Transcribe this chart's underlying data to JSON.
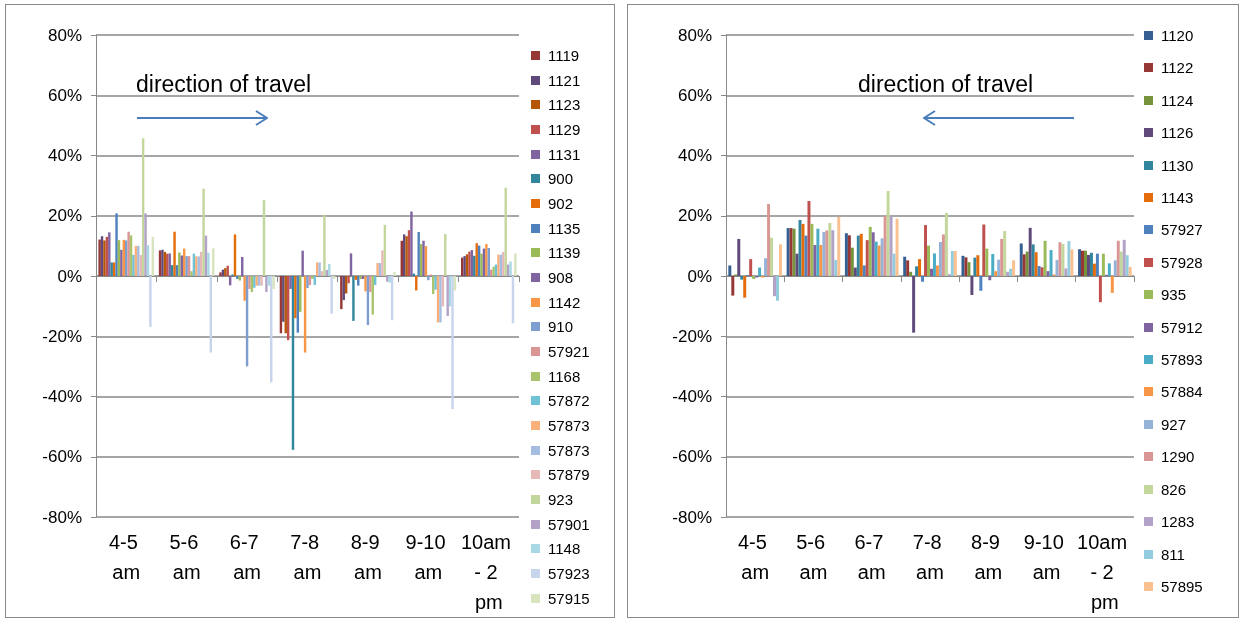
{
  "chart_data": [
    {
      "type": "bar",
      "annotations": [
        "direction of travel"
      ],
      "categories": [
        "4-5 am",
        "5-6 am",
        "6-7 am",
        "7-8 am",
        "8-9 am",
        "9-10 am",
        "10am - 2 pm"
      ],
      "ylim": [
        -80,
        80
      ],
      "yticks": [
        {
          "value": -80,
          "label": "-80%"
        },
        {
          "value": -60,
          "label": "-60%"
        },
        {
          "value": -40,
          "label": "-40%"
        },
        {
          "value": -20,
          "label": "-20%"
        },
        {
          "value": 0,
          "label": "0%"
        },
        {
          "value": 20,
          "label": "20%"
        },
        {
          "value": 40,
          "label": "40%"
        },
        {
          "value": 60,
          "label": "60%"
        },
        {
          "value": 80,
          "label": "80%"
        }
      ],
      "grid": "y",
      "legend": "right",
      "series": [
        {
          "name": "1119",
          "color": "#953735",
          "values": [
            12.1,
            8.5,
            1.2,
            -19,
            -11,
            11.7,
            6.1
          ]
        },
        {
          "name": "1121",
          "color": "#604a7b",
          "values": [
            13.2,
            8.7,
            2.1,
            -15.2,
            -8,
            13.8,
            6.6
          ]
        },
        {
          "name": "1123",
          "color": "#b65708",
          "values": [
            11.8,
            8,
            2.6,
            -19,
            -5.8,
            13.2,
            7.2
          ]
        },
        {
          "name": "1129",
          "color": "#c0504d",
          "values": [
            13,
            7.4,
            3.4,
            -21.3,
            -2.4,
            15.2,
            8.1
          ]
        },
        {
          "name": "1131",
          "color": "#8064a2",
          "values": [
            14.5,
            7.5,
            -3.1,
            -4.3,
            7.5,
            21.4,
            8.6
          ]
        },
        {
          "name": "900",
          "color": "#31859c",
          "values": [
            4.5,
            3.6,
            0.5,
            -57.7,
            -14.9,
            0.8,
            6.7
          ]
        },
        {
          "name": "902",
          "color": "#e46c0a",
          "values": [
            4.5,
            14.7,
            13.8,
            -14,
            -1.3,
            -4.8,
            10.9
          ]
        },
        {
          "name": "1135",
          "color": "#4f81bd",
          "values": [
            20.8,
            3.6,
            -1,
            -18.8,
            -3.2,
            14.6,
            10.1
          ]
        },
        {
          "name": "1139",
          "color": "#9bbb59",
          "values": [
            11.9,
            7.8,
            -1.5,
            -11.9,
            -1,
            10.6,
            7.4
          ]
        },
        {
          "name": "908",
          "color": "#8064a2",
          "values": [
            8.7,
            6.8,
            6.3,
            8.4,
            -1,
            11.7,
            9.1
          ]
        },
        {
          "name": "1142",
          "color": "#f79646",
          "values": [
            12,
            9.1,
            -8.2,
            -25.4,
            -5.1,
            9.9,
            10.6
          ]
        },
        {
          "name": "910",
          "color": "#7f9ed0",
          "values": [
            11.8,
            6.6,
            -30,
            -4,
            -16.3,
            -1.4,
            9.3
          ]
        },
        {
          "name": "57921",
          "color": "#d99694",
          "values": [
            14.7,
            6.6,
            -4.3,
            -3,
            -5.3,
            0.5,
            2.1
          ]
        },
        {
          "name": "1168",
          "color": "#a9c46c",
          "values": [
            13.5,
            1.6,
            -5.3,
            -1,
            -12.8,
            -6,
            3.1
          ]
        },
        {
          "name": "57872",
          "color": "#6fc1d6",
          "values": [
            7,
            7.4,
            -3.9,
            -3,
            -3,
            -4.5,
            3.8
          ]
        },
        {
          "name": "57873",
          "color": "#fab07a",
          "values": [
            10,
            6.5,
            -3.2,
            4.5,
            4.3,
            -15.4,
            7.1
          ]
        },
        {
          "name": "57873",
          "color": "#a5bde0",
          "values": [
            10,
            6.5,
            -3.2,
            4.5,
            4.3,
            -15.4,
            7.1
          ]
        },
        {
          "name": "57879",
          "color": "#e6b9b8",
          "values": [
            7,
            8,
            -3.2,
            1.6,
            8.5,
            -10.1,
            8
          ]
        },
        {
          "name": "923",
          "color": "#c3d69b",
          "values": [
            45.7,
            29,
            25.3,
            20.2,
            17,
            13.9,
            29.3
          ]
        },
        {
          "name": "57901",
          "color": "#b3a2c7",
          "values": [
            20.8,
            13.4,
            -5.3,
            2,
            -1.9,
            -13.3,
            3.8
          ]
        },
        {
          "name": "1148",
          "color": "#a8d8e4",
          "values": [
            10.2,
            7.7,
            -3.2,
            4,
            -2.2,
            -10.1,
            4.8
          ]
        },
        {
          "name": "57923",
          "color": "#c6d4ec",
          "values": [
            -16.9,
            -25.4,
            -35.3,
            -12.5,
            -14.7,
            -44.2,
            -15.7
          ]
        },
        {
          "name": "57915",
          "color": "#d7e4bd",
          "values": [
            13,
            9.2,
            -4.3,
            -1,
            1.4,
            -4.8,
            7.5
          ]
        }
      ]
    },
    {
      "type": "bar",
      "annotations": [
        "direction of travel"
      ],
      "categories": [
        "4-5 am",
        "5-6 am",
        "6-7 am",
        "7-8 am",
        "8-9 am",
        "9-10 am",
        "10am - 2 pm"
      ],
      "ylim": [
        -80,
        80
      ],
      "yticks": [
        {
          "value": -80,
          "label": "-80%"
        },
        {
          "value": -60,
          "label": "-60%"
        },
        {
          "value": -40,
          "label": "-40%"
        },
        {
          "value": -20,
          "label": "-20%"
        },
        {
          "value": 0,
          "label": "0%"
        },
        {
          "value": 20,
          "label": "20%"
        },
        {
          "value": 40,
          "label": "40%"
        },
        {
          "value": 60,
          "label": "60%"
        },
        {
          "value": 80,
          "label": "80%"
        }
      ],
      "grid": "y",
      "legend": "right",
      "series": [
        {
          "name": "1120",
          "color": "#376092",
          "values": [
            3.5,
            15.9,
            14.2,
            6.4,
            6.7,
            10.8,
            8.9
          ]
        },
        {
          "name": "1122",
          "color": "#953735",
          "values": [
            -6.5,
            15.9,
            13.5,
            5.2,
            6.2,
            7.2,
            8.4
          ]
        },
        {
          "name": "1124",
          "color": "#77933c",
          "values": [
            0.5,
            15.7,
            9.4,
            1.4,
            4.6,
            8.1,
            8.4
          ]
        },
        {
          "name": "1126",
          "color": "#604a7b",
          "values": [
            12.3,
            7.4,
            2.8,
            -18.8,
            -6.3,
            16,
            7
          ]
        },
        {
          "name": "1130",
          "color": "#31859c",
          "values": [
            -1.2,
            18.6,
            13.4,
            3.2,
            6.1,
            10.5,
            7.7
          ]
        },
        {
          "name": "1143",
          "color": "#e46c0a",
          "values": [
            -7.2,
            17.3,
            14,
            5.6,
            6.9,
            7.9,
            4.1
          ]
        },
        {
          "name": "57927",
          "color": "#4f81bd",
          "values": [
            0.3,
            13.4,
            3.5,
            -1.9,
            -4.9,
            3.3,
            7.4
          ]
        },
        {
          "name": "57928",
          "color": "#c0504d",
          "values": [
            5.6,
            24.9,
            11.9,
            16.9,
            17.1,
            2.9,
            -8.7
          ]
        },
        {
          "name": "935",
          "color": "#9bbb59",
          "values": [
            -1,
            17.3,
            16.3,
            10.1,
            9.1,
            11.7,
            7.4
          ]
        },
        {
          "name": "57912",
          "color": "#8064a2",
          "values": [
            -0.5,
            10.3,
            14.5,
            2.4,
            -1.4,
            1.6,
            0.4
          ]
        },
        {
          "name": "57893",
          "color": "#4bacc6",
          "values": [
            2.8,
            15.7,
            11.4,
            7.5,
            7.3,
            8.6,
            4.2
          ]
        },
        {
          "name": "57884",
          "color": "#f79646",
          "values": [
            -0.5,
            10.3,
            10.1,
            3.5,
            1.6,
            0.5,
            -5.6
          ]
        },
        {
          "name": "927",
          "color": "#95b3d7",
          "values": [
            5.9,
            14.6,
            12.5,
            11.3,
            5.4,
            5.3,
            5.2
          ]
        },
        {
          "name": "1290",
          "color": "#d99694",
          "values": [
            23.9,
            15.1,
            20,
            13.8,
            12.3,
            11.2,
            11.7
          ]
        },
        {
          "name": "826",
          "color": "#c3d69b",
          "values": [
            12.7,
            17.6,
            28.2,
            21,
            14.9,
            10.6,
            8.1
          ]
        },
        {
          "name": "1283",
          "color": "#b3a2c7",
          "values": [
            -6.7,
            15.2,
            19.7,
            0.6,
            1.4,
            2.5,
            12
          ]
        },
        {
          "name": "811",
          "color": "#93cddd",
          "values": [
            -8.2,
            5.3,
            7.4,
            8.3,
            2.4,
            11.6,
            6.9
          ]
        },
        {
          "name": "57895",
          "color": "#fac090",
          "values": [
            10.5,
            19.6,
            19,
            8.3,
            5.2,
            8.8,
            3
          ]
        }
      ]
    }
  ]
}
